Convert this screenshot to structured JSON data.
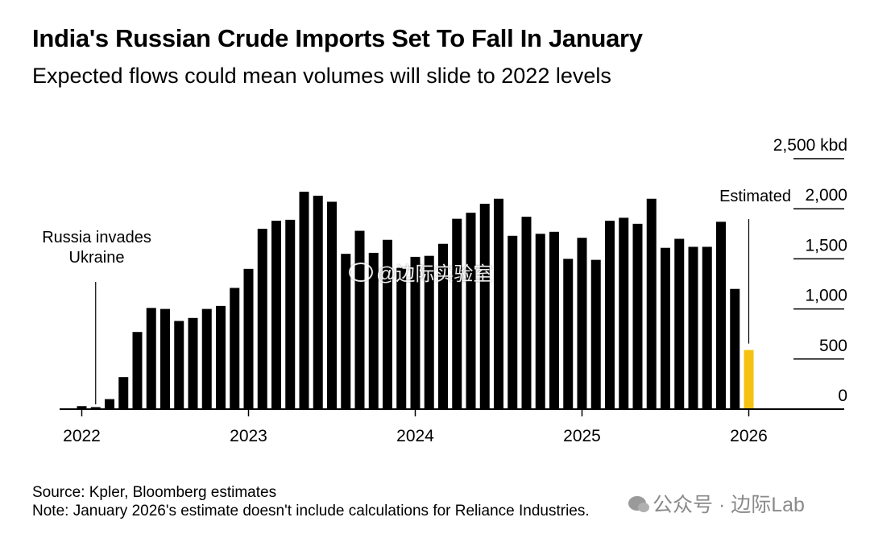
{
  "header": {
    "title": "India's Russian Crude Imports Set To Fall In January",
    "subtitle": "Expected flows could mean volumes will slide to 2022 levels"
  },
  "footer": {
    "source": "Source: Kpler, Bloomberg estimates",
    "note": "Note: January 2026's estimate doesn't include calculations for Reliance Industries."
  },
  "watermarks": {
    "center": "@边际实验室",
    "corner": "公众号 · 边际Lab",
    "center_icon": "weibo-icon",
    "corner_icon": "wechat-icon"
  },
  "colors": {
    "bar": "#000000",
    "estimated": "#f5c211",
    "grid": "#000000"
  },
  "chart_data": {
    "type": "bar",
    "unit": "kbd",
    "categories": [
      "2022-01",
      "2022-02",
      "2022-03",
      "2022-04",
      "2022-05",
      "2022-06",
      "2022-07",
      "2022-08",
      "2022-09",
      "2022-10",
      "2022-11",
      "2022-12",
      "2023-01",
      "2023-02",
      "2023-03",
      "2023-04",
      "2023-05",
      "2023-06",
      "2023-07",
      "2023-08",
      "2023-09",
      "2023-10",
      "2023-11",
      "2023-12",
      "2024-01",
      "2024-02",
      "2024-03",
      "2024-04",
      "2024-05",
      "2024-06",
      "2024-07",
      "2024-08",
      "2024-09",
      "2024-10",
      "2024-11",
      "2024-12",
      "2025-01",
      "2025-02",
      "2025-03",
      "2025-04",
      "2025-05",
      "2025-06",
      "2025-07",
      "2025-08",
      "2025-09",
      "2025-10",
      "2025-11",
      "2025-12",
      "2026-01"
    ],
    "values": [
      30,
      20,
      100,
      320,
      770,
      1010,
      1000,
      880,
      910,
      1000,
      1030,
      1210,
      1400,
      1800,
      1880,
      1890,
      2170,
      2130,
      2070,
      1550,
      1780,
      1560,
      1690,
      1410,
      1520,
      1530,
      1650,
      1900,
      1960,
      2050,
      2100,
      1730,
      1920,
      1750,
      1770,
      1500,
      1710,
      1490,
      1880,
      1910,
      1850,
      2100,
      1610,
      1700,
      1620,
      1620,
      1870,
      1200,
      590
    ],
    "estimated_index": 48,
    "y_ticks": [
      0,
      500,
      1000,
      1500,
      2000,
      2500
    ],
    "y_tick_labels": [
      "0",
      "500",
      "1,000",
      "1,500",
      "2,000",
      "2,500 kbd"
    ],
    "ylim": [
      0,
      2500
    ],
    "x_ticks": [
      "2022",
      "2023",
      "2024",
      "2025",
      "2026"
    ],
    "grid": true,
    "annotations": [
      {
        "text_lines": [
          "Russia invades",
          "Ukraine"
        ],
        "target": "2022-02"
      },
      {
        "text_lines": [
          "Estimated"
        ],
        "target": "2026-01"
      }
    ],
    "title": "India's Russian Crude Imports Set To Fall In January",
    "subtitle": "Expected flows could mean volumes will slide to 2022 levels"
  }
}
